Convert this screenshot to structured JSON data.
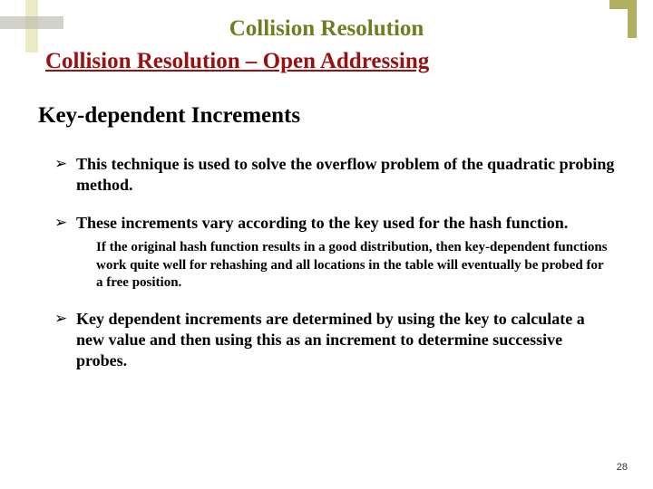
{
  "colors": {
    "title_color": "#6f7d1f",
    "subtitle_color": "#9a0f0f",
    "corner_tl_h": "#bdbdaf",
    "corner_tl_v": "#e3e3ae",
    "corner_tr": "#b0b060",
    "text_color": "#000000",
    "background": "#ffffff"
  },
  "title": "Collision Resolution",
  "subtitle": "Collision Resolution – Open Addressing",
  "section_heading": "Key-dependent Increments",
  "bullets": [
    {
      "text": "This technique is used to solve the overflow problem of  the quadratic probing method."
    },
    {
      "text": "These increments vary according to the key used for the hash function.",
      "sub": "If the original hash function results in a good distribution, then key-dependent functions work quite well for rehashing and all locations in the table will eventually be probed for a free position."
    },
    {
      "text": "Key dependent increments are determined by using the key to calculate a new value and then using this as an increment to determine successive probes."
    }
  ],
  "page_number": "28"
}
